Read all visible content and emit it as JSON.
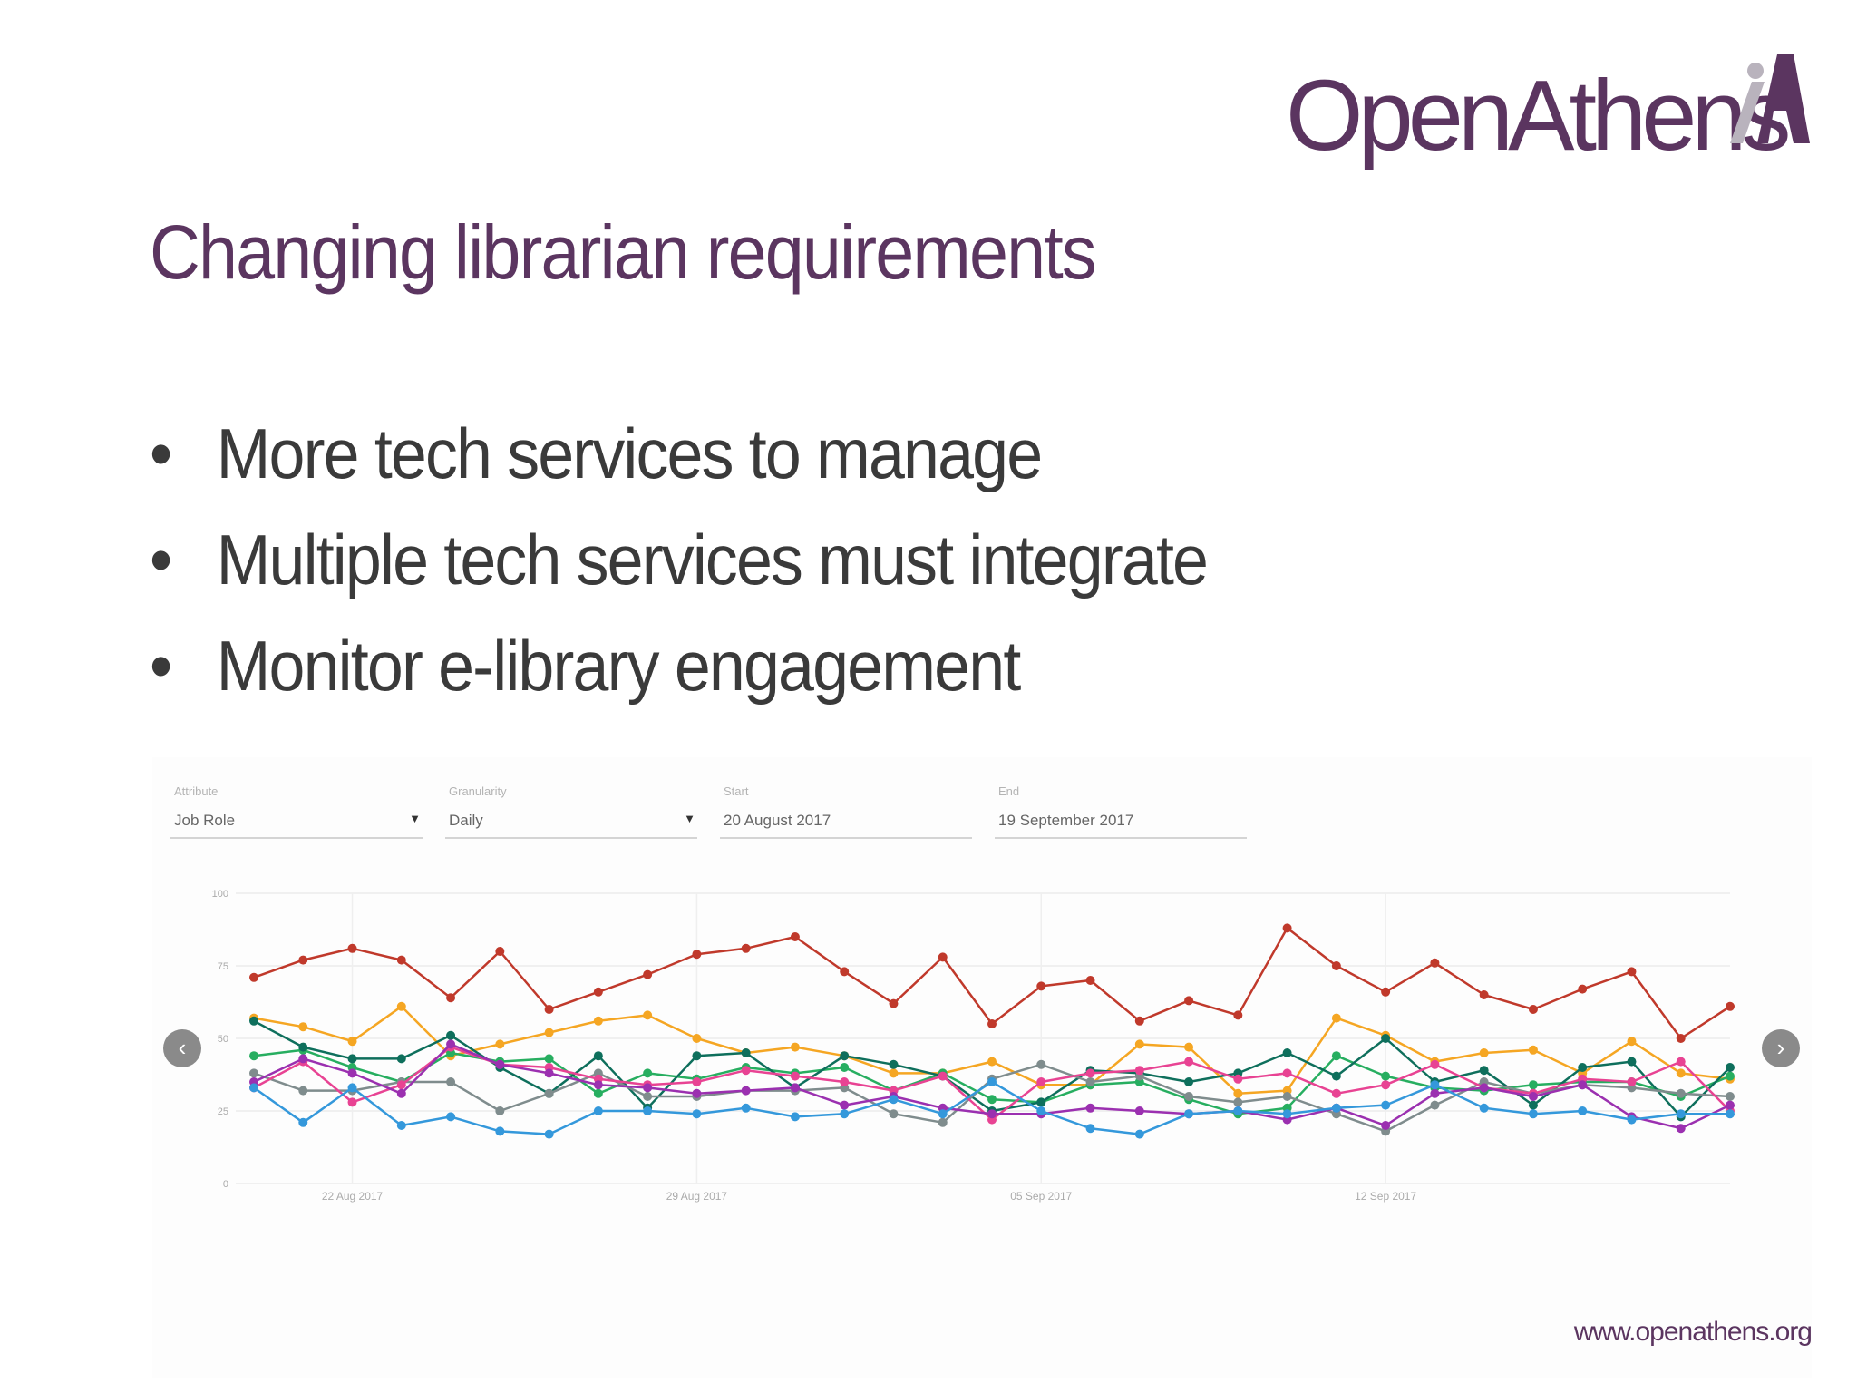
{
  "logo": {
    "text": "OpenAthens",
    "color": "#5b3560"
  },
  "title": "Changing librarian requirements",
  "bullets": [
    "More tech services to manage",
    "Multiple tech services must integrate",
    "Monitor e-library engagement"
  ],
  "filters": {
    "attribute": {
      "label": "Attribute",
      "value": "Job Role"
    },
    "granularity": {
      "label": "Granularity",
      "value": "Daily"
    },
    "start": {
      "label": "Start",
      "value": "20 August 2017"
    },
    "end": {
      "label": "End",
      "value": "19 September 2017"
    }
  },
  "icons": {
    "prev": "chevron-left-icon",
    "next": "chevron-right-icon",
    "dropdown": "caret-down-icon"
  },
  "footer": {
    "url": "www.openathens.org"
  },
  "chart_data": {
    "type": "line",
    "x": [
      "20 Aug",
      "21 Aug",
      "22 Aug",
      "23 Aug",
      "24 Aug",
      "25 Aug",
      "26 Aug",
      "27 Aug",
      "28 Aug",
      "29 Aug",
      "30 Aug",
      "31 Aug",
      "01 Sep",
      "02 Sep",
      "03 Sep",
      "04 Sep",
      "05 Sep",
      "06 Sep",
      "07 Sep",
      "08 Sep",
      "09 Sep",
      "10 Sep",
      "11 Sep",
      "12 Sep",
      "13 Sep",
      "14 Sep",
      "15 Sep",
      "16 Sep",
      "17 Sep",
      "18 Sep",
      "19 Sep"
    ],
    "x_tick_labels": [
      {
        "index": 2,
        "label": "22 Aug 2017"
      },
      {
        "index": 9,
        "label": "29 Aug 2017"
      },
      {
        "index": 16,
        "label": "05 Sep 2017"
      },
      {
        "index": 23,
        "label": "12 Sep 2017"
      }
    ],
    "y_ticks": [
      0,
      25,
      50,
      75,
      100
    ],
    "ylim": [
      0,
      100
    ],
    "grid": true,
    "series": [
      {
        "color": "#c0392b",
        "values": [
          71,
          77,
          81,
          77,
          64,
          80,
          60,
          66,
          72,
          79,
          81,
          85,
          73,
          62,
          78,
          55,
          68,
          70,
          56,
          63,
          58,
          88,
          75,
          66,
          76,
          65,
          60,
          67,
          73,
          50,
          61
        ]
      },
      {
        "color": "#f5a623",
        "values": [
          57,
          54,
          49,
          61,
          44,
          48,
          52,
          56,
          58,
          50,
          45,
          47,
          44,
          38,
          38,
          42,
          34,
          34,
          48,
          47,
          31,
          32,
          57,
          51,
          42,
          45,
          46,
          38,
          49,
          38,
          36
        ]
      },
      {
        "color": "#27ae60",
        "values": [
          44,
          46,
          40,
          35,
          45,
          42,
          43,
          31,
          38,
          36,
          40,
          38,
          40,
          32,
          38,
          29,
          28,
          34,
          35,
          29,
          24,
          26,
          44,
          37,
          33,
          32,
          34,
          35,
          35,
          30,
          37
        ]
      },
      {
        "color": "#0e6f5c",
        "values": [
          56,
          47,
          43,
          43,
          51,
          40,
          31,
          44,
          26,
          44,
          45,
          33,
          44,
          41,
          37,
          25,
          28,
          39,
          38,
          35,
          38,
          45,
          37,
          50,
          35,
          39,
          27,
          40,
          42,
          23,
          40
        ]
      },
      {
        "color": "#7f8c8d",
        "values": [
          38,
          32,
          32,
          35,
          35,
          25,
          31,
          38,
          30,
          30,
          32,
          32,
          33,
          24,
          21,
          36,
          41,
          35,
          37,
          30,
          28,
          30,
          24,
          18,
          27,
          35,
          31,
          34,
          33,
          31,
          30
        ]
      },
      {
        "color": "#e84393",
        "values": [
          33,
          42,
          28,
          34,
          47,
          41,
          40,
          36,
          34,
          35,
          39,
          37,
          35,
          32,
          37,
          22,
          35,
          38,
          39,
          42,
          36,
          38,
          31,
          34,
          41,
          33,
          31,
          36,
          35,
          42,
          25
        ]
      },
      {
        "color": "#9b30b0",
        "values": [
          35,
          43,
          38,
          31,
          48,
          41,
          38,
          34,
          33,
          31,
          32,
          33,
          27,
          30,
          26,
          24,
          24,
          26,
          25,
          24,
          25,
          22,
          26,
          20,
          31,
          33,
          30,
          34,
          23,
          19,
          27
        ]
      },
      {
        "color": "#3498db",
        "values": [
          33,
          21,
          33,
          20,
          23,
          18,
          17,
          25,
          25,
          24,
          26,
          23,
          24,
          29,
          24,
          35,
          25,
          19,
          17,
          24,
          25,
          24,
          26,
          27,
          34,
          26,
          24,
          25,
          22,
          24,
          24
        ]
      }
    ]
  }
}
